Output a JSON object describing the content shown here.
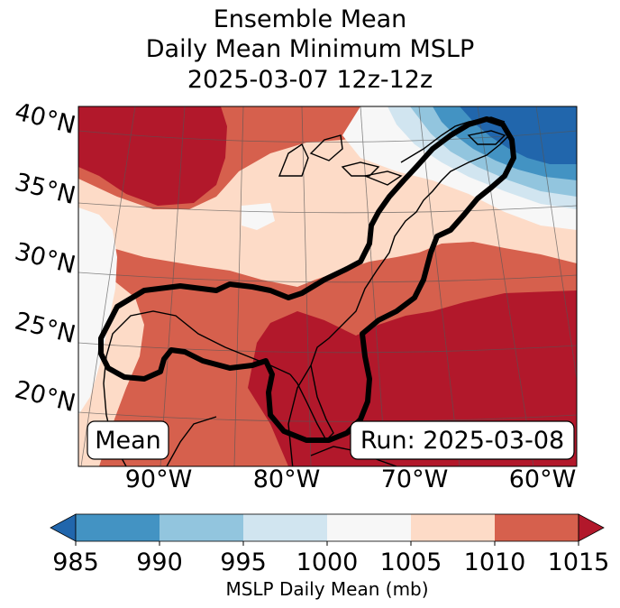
{
  "title": {
    "line1": "Ensemble Mean",
    "line2": "Daily Mean Minimum MSLP",
    "line3": "2025-03-07 12z-12z"
  },
  "chart_data": {
    "type": "heatmap",
    "title": "Ensemble Mean Daily Mean Minimum MSLP 2025-03-07 12z-12z",
    "variable": "MSLP Daily Mean (mb)",
    "lat_labels": [
      "40°N",
      "35°N",
      "30°N",
      "25°N",
      "20°N"
    ],
    "lon_labels": [
      "90°W",
      "80°W",
      "70°W",
      "60°W"
    ],
    "map_extent": {
      "lon_min": -97,
      "lon_max": -58,
      "lat_min": 17,
      "lat_max": 42
    },
    "colorbar": {
      "levels": [
        "985",
        "990",
        "995",
        "1000",
        "1005",
        "1010",
        "1015"
      ],
      "colors": [
        "#2166ac",
        "#4393c3",
        "#92c5de",
        "#d1e5f0",
        "#f7f7f7",
        "#fddbc7",
        "#d6604d",
        "#b2182b"
      ],
      "label": "MSLP Daily Mean (mb)",
      "extend": "both"
    },
    "annotations": {
      "left": "Mean",
      "right": "Run: 2025-03-08"
    }
  }
}
